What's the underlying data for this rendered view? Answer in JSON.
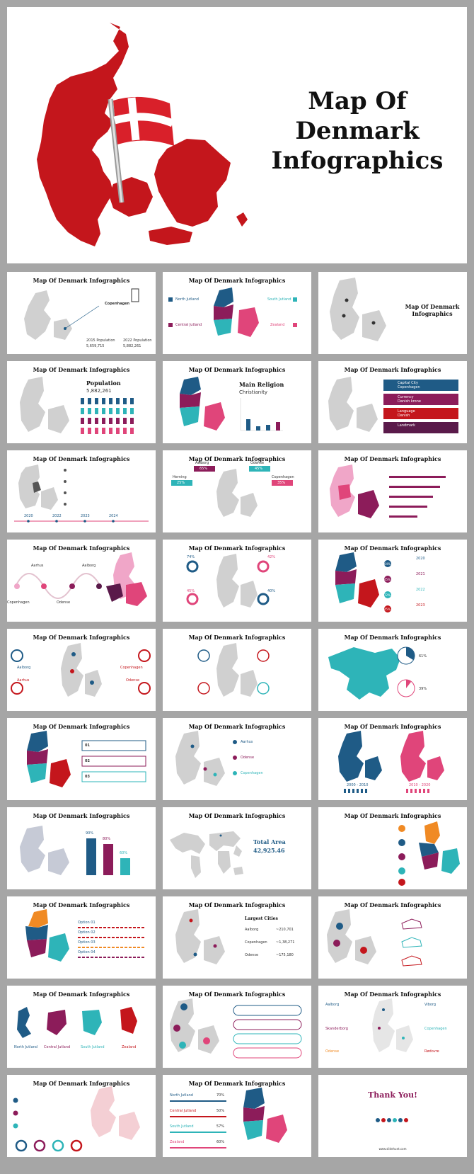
{
  "hero": {
    "title_line1": "Map Of",
    "title_line2": "Denmark",
    "title_line3": "Infographics"
  },
  "thumb_title": "Map Of Denmark Infographics",
  "slides": {
    "s1": {
      "city": "Copenhagen",
      "pop_2015_label": "2015 Population",
      "pop_2015": "5,659,715",
      "pop_2022_label": "2022 Population",
      "pop_2022": "5,882,261"
    },
    "s2": {
      "labels": [
        "North Jutland",
        "South Jutland",
        "Central Jutland",
        "Zealand"
      ]
    },
    "s3": {
      "side_title": "Map Of Denmark Infographics"
    },
    "s4": {
      "heading": "Population",
      "value": "5,882,261"
    },
    "s5": {
      "heading": "Main Religion",
      "value": "Christianity"
    },
    "s6": {
      "rows": [
        "Capital City",
        "Currency",
        "Language",
        "Landmark"
      ],
      "values": [
        "Copenhagen",
        "Danish krone",
        "Danish",
        ""
      ]
    },
    "s7": {
      "years": [
        "2020",
        "2022",
        "2023",
        "2024"
      ]
    },
    "s8": {
      "pcts": [
        "65%",
        "25%",
        "45%",
        "35%"
      ],
      "cities": [
        "Aalborg",
        "Herning",
        "Odense",
        "Copenhagen"
      ]
    },
    "s10": {
      "cities": [
        "Aarhus",
        "Aalborg",
        "Odense",
        "Copenhagen"
      ]
    },
    "s11": {
      "pcts": [
        "74%",
        "42%",
        "45%",
        "40%"
      ]
    },
    "s12": {
      "years": [
        "2020",
        "2021",
        "2022",
        "2023"
      ],
      "pcts": [
        "64%",
        "45%",
        "72%",
        "45%"
      ]
    },
    "s13": {
      "cities": [
        "Aalborg",
        "Copenhagen",
        "Aarhus",
        "Odense"
      ]
    },
    "s15": {
      "pcts": [
        "61%",
        "39%"
      ]
    },
    "s16": {
      "nums": [
        "01",
        "02",
        "03"
      ]
    },
    "s17": {
      "cities": [
        "Aarhus",
        "Odense",
        "Copenhagen"
      ]
    },
    "s18": {
      "years": [
        "2000 - 2010",
        "2010 - 2020"
      ]
    },
    "s19": {
      "pcts": [
        "90%",
        "80%",
        "60%"
      ]
    },
    "s20": {
      "label": "Total Area",
      "value": "42,925.46"
    },
    "s22": {
      "options": [
        "Option 01",
        "Option 02",
        "Option 03",
        "Option 04"
      ]
    },
    "s23": {
      "heading": "Largest Cities",
      "cities": [
        "Aalborg",
        "Copenhagen",
        "Odense"
      ],
      "values": [
        "~210,701",
        "~1,38,271",
        "~175,180"
      ]
    },
    "s25": {
      "labels": [
        "North Jutland",
        "Central Jutland",
        "South Jutland",
        "Zealand"
      ]
    },
    "s27": {
      "labels": [
        "Aalborg",
        "Viborg",
        "Skanderborg",
        "Copenhagen",
        "Odense",
        "Rødovre"
      ]
    },
    "s29": {
      "labels": [
        "North Jutland",
        "Central Jutland",
        "South Jutland",
        "Zealand"
      ],
      "pcts": [
        "70%",
        "50%",
        "57%",
        "60%"
      ]
    },
    "s30": {
      "heading": "Thank You!",
      "url": "www.slidehunt.com"
    }
  },
  "colors": {
    "red": "#c4161c",
    "blue": "#1f5b86",
    "purple": "#8c1c5a",
    "teal": "#2eb4b8",
    "pink": "#e0457a",
    "gray": "#d0d0d0",
    "orange": "#f08a24"
  }
}
